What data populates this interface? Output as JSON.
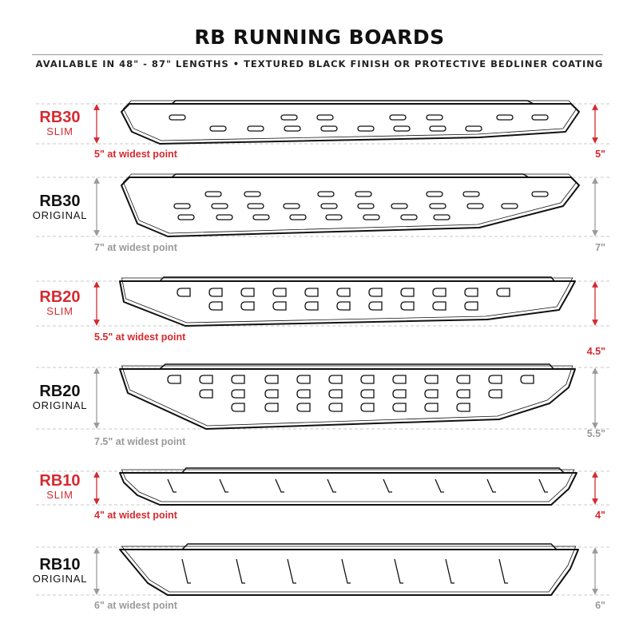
{
  "header": {
    "title": "RB RUNNING BOARDS",
    "subtitle": "AVAILABLE IN 48\" - 87\" LENGTHS  •  TEXTURED BLACK FINISH OR PROTECTIVE BEDLINER COATING"
  },
  "colors": {
    "red": "#d42a30",
    "gray": "#9a9a9a",
    "black": "#111111"
  },
  "boards": [
    {
      "name": "RB30",
      "variant": "SLIM",
      "caption": "5\" at widest point",
      "right_label": "5\"",
      "accent": "red"
    },
    {
      "name": "RB30",
      "variant": "ORIGINAL",
      "caption": "7\" at widest point",
      "right_label": "7\"",
      "accent": "gray"
    },
    {
      "name": "RB20",
      "variant": "SLIM",
      "caption": "5.5\" at widest point",
      "right_label": "4.5\"",
      "accent": "red"
    },
    {
      "name": "RB20",
      "variant": "ORIGINAL",
      "caption": "7.5\" at widest point",
      "right_label": "5.5\"",
      "accent": "gray"
    },
    {
      "name": "RB10",
      "variant": "SLIM",
      "caption": "4\" at widest point",
      "right_label": "4\"",
      "accent": "red"
    },
    {
      "name": "RB10",
      "variant": "ORIGINAL",
      "caption": "6\" at widest point",
      "right_label": "6\"",
      "accent": "gray"
    }
  ]
}
